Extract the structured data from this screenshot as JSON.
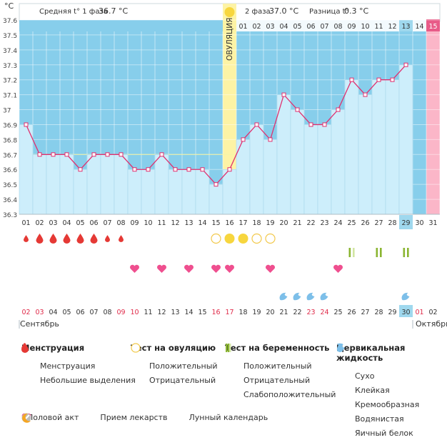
{
  "header": {
    "unit": "°C",
    "phase1_label": "Средняя t° 1 фаза",
    "phase1_value": "36.7 °C",
    "phase2_label": "2 фаза",
    "phase2_value": "37.0 °C",
    "diff_label": "Разница t°",
    "diff_value": "0.3 °C",
    "ovulation_label": "ОВУЛЯЦИЯ",
    "top_numbers": [
      "01",
      "02",
      "03",
      "04",
      "05",
      "06",
      "07",
      "08",
      "09",
      "10",
      "11",
      "12",
      "13",
      "14",
      "15"
    ]
  },
  "chart_data": {
    "type": "line",
    "x": [
      "01",
      "02",
      "03",
      "04",
      "05",
      "06",
      "07",
      "08",
      "09",
      "10",
      "11",
      "12",
      "13",
      "14",
      "15",
      "16",
      "17",
      "18",
      "19",
      "20",
      "21",
      "22",
      "23",
      "24",
      "25",
      "26",
      "27",
      "28",
      "29",
      "30",
      "31"
    ],
    "series": [
      {
        "values": [
          36.9,
          36.7,
          36.7,
          36.7,
          36.6,
          36.7,
          36.7,
          36.7,
          36.6,
          36.6,
          36.7,
          36.6,
          36.6,
          36.6,
          36.5,
          36.6,
          36.8,
          36.9,
          36.8,
          37.1,
          37.0,
          36.9,
          36.9,
          37.0,
          37.2,
          37.1,
          37.2,
          37.2,
          37.3,
          null,
          null
        ]
      }
    ],
    "y_ticks": [
      "36.3",
      "36.4",
      "36.5",
      "36.6",
      "36.7",
      "36.8",
      "36.9",
      "37",
      "37.1",
      "37.2",
      "37.3",
      "37.4",
      "37.5",
      "37.6"
    ],
    "ylim": [
      36.3,
      37.6
    ],
    "coverline": 36.7,
    "ovulation_day": 16,
    "highlight_day": 29,
    "pink_day": 31,
    "grey_days": [
      30
    ]
  },
  "markers": {
    "menstruation": [
      {
        "day": 1,
        "small": true
      },
      {
        "day": 2,
        "small": false
      },
      {
        "day": 3,
        "small": false
      },
      {
        "day": 4,
        "small": false
      },
      {
        "day": 5,
        "small": false
      },
      {
        "day": 6,
        "small": false
      },
      {
        "day": 7,
        "small": true
      },
      {
        "day": 8,
        "small": true
      }
    ],
    "ovulation_tests": [
      {
        "day": 15,
        "positive": false
      },
      {
        "day": 16,
        "positive": true
      },
      {
        "day": 17,
        "positive": true
      },
      {
        "day": 18,
        "positive": false
      },
      {
        "day": 19,
        "positive": false
      }
    ],
    "pregnancy_tests": [
      {
        "day": 25,
        "kind": "weak"
      },
      {
        "day": 27,
        "kind": "positive"
      },
      {
        "day": 29,
        "kind": "positive"
      }
    ],
    "intercourse": [
      9,
      11,
      13,
      15,
      16,
      19,
      24
    ],
    "fluid": [
      20,
      21,
      22,
      23,
      29
    ]
  },
  "dates": {
    "labels": [
      "02",
      "03",
      "04",
      "05",
      "06",
      "07",
      "08",
      "09",
      "10",
      "11",
      "12",
      "13",
      "14",
      "15",
      "16",
      "17",
      "18",
      "19",
      "20",
      "21",
      "22",
      "23",
      "24",
      "25",
      "26",
      "27",
      "28",
      "29",
      "30",
      "01",
      "02"
    ],
    "red_indices": [
      0,
      1,
      7,
      8,
      14,
      15,
      21,
      22,
      29
    ],
    "boxed_index": 28,
    "month_left": "Сентябрь",
    "month_right": "Октябрь"
  },
  "legend": {
    "menstruation": {
      "title": "Менструация",
      "items": [
        "Менструация",
        "Небольшие выделения"
      ]
    },
    "ovulation_test": {
      "title": "Тест на овуляцию",
      "items": [
        "Положительный",
        "Отрицательный"
      ]
    },
    "pregnancy_test": {
      "title": "Тест на беременность",
      "items": [
        "Положительный",
        "Отрицательный",
        "Слабоположительный"
      ]
    },
    "cervical": {
      "title": "Цервикальная жидкость",
      "items": [
        "Сухо",
        "Клейкая",
        "Кремообразная",
        "Водянистая",
        "Яичный белок"
      ]
    },
    "bottom": [
      "Половой акт",
      "Прием лекарств",
      "Лунный календарь"
    ]
  },
  "colors": {
    "sky": "#87ceeb",
    "area": "#cdeefb",
    "line": "#e0306f",
    "ovulation": "#fdf3a5",
    "pink": "#fbb6c8",
    "drop": "#e53935",
    "heart": "#ef4f8f",
    "ovu_test": "#f7d63e",
    "preg": "#8ab531",
    "fluid": "#7dbfe9"
  }
}
